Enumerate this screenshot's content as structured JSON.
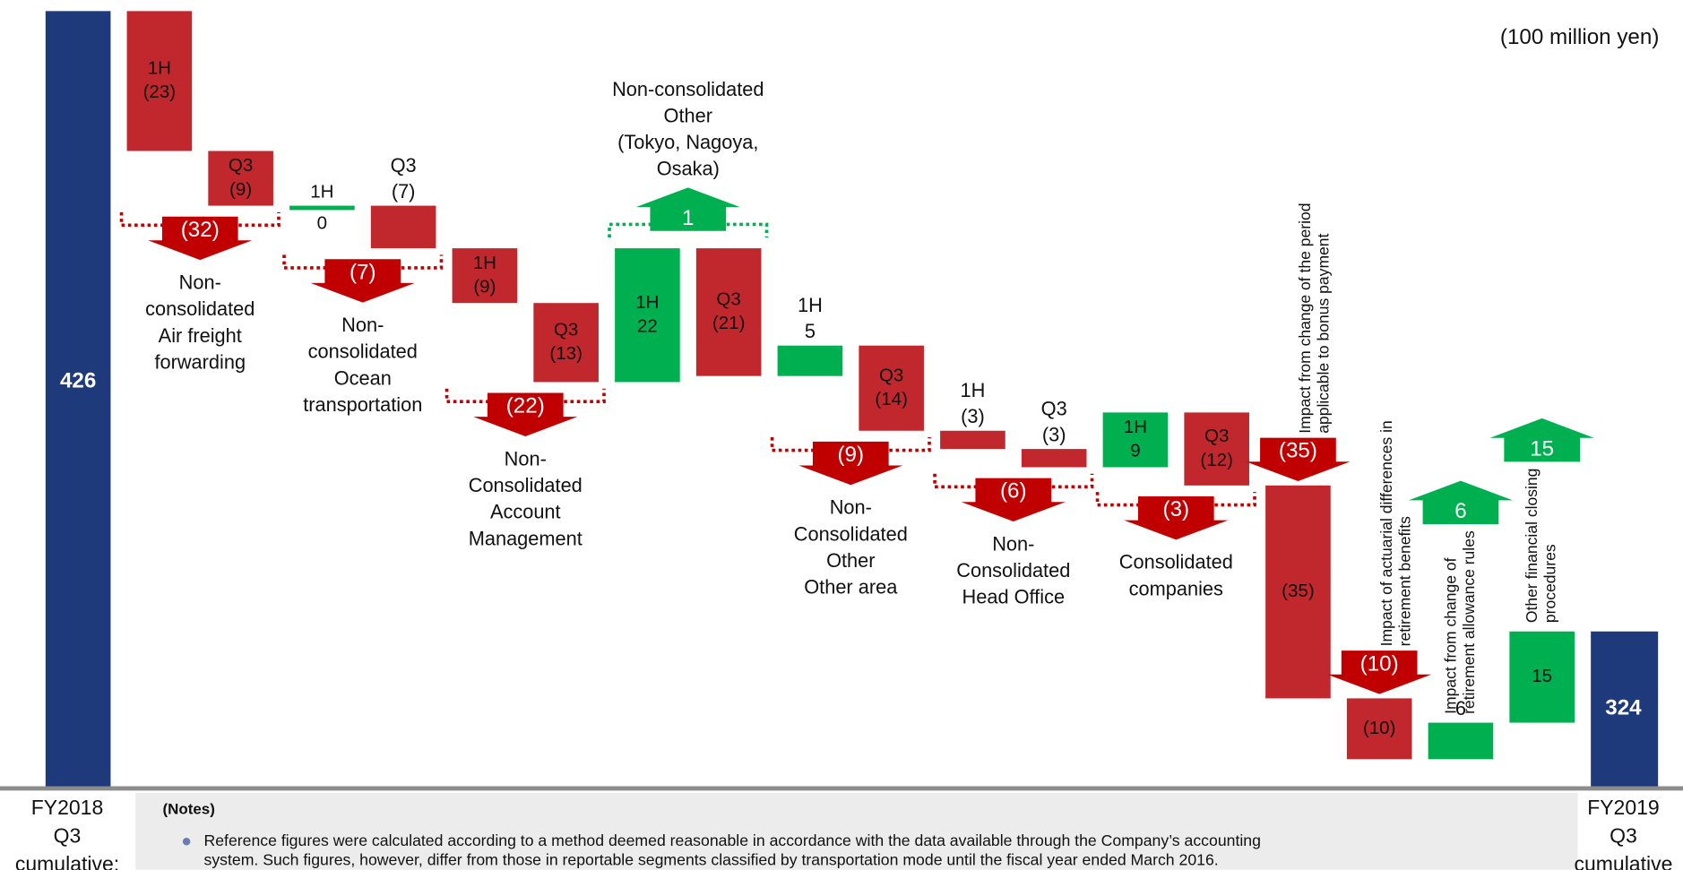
{
  "chart_data": {
    "type": "waterfall",
    "unit": "(100 million yen)",
    "colors": {
      "total": "#1f3a7a",
      "up": "#00b050",
      "down": "#c0282d",
      "arrow_down": "#c00000",
      "arrow_up": "#00b050"
    },
    "start": {
      "label": [
        "FY2018",
        "Q3",
        "cumulative:"
      ],
      "value": 426
    },
    "end": {
      "label": [
        "FY2019",
        "Q3",
        "cumulative"
      ],
      "value": 324
    },
    "groups": [
      {
        "name": [
          "Non-",
          "consolidated",
          "Air freight",
          "forwarding"
        ],
        "total": -32,
        "total_label": "(32)",
        "steps": [
          {
            "period": "1H",
            "value": -23,
            "value_label": "(23)"
          },
          {
            "period": "Q3",
            "value": -9,
            "value_label": "(9)"
          }
        ]
      },
      {
        "name": [
          "Non-",
          "consolidated",
          "Ocean",
          "transportation"
        ],
        "total": -7,
        "total_label": "(7)",
        "steps": [
          {
            "period": "1H",
            "value": 0
          },
          {
            "period": "Q3",
            "value": -7,
            "value_label": "(7)"
          }
        ]
      },
      {
        "name": [
          "Non-",
          "Consolidated",
          "Account",
          "Management"
        ],
        "total": -22,
        "total_label": "(22)",
        "steps": [
          {
            "period": "1H",
            "value": -9,
            "value_label": "(9)"
          },
          {
            "period": "Q3",
            "value": -13,
            "value_label": "(13)"
          }
        ]
      },
      {
        "name": [
          "Non-consolidated",
          "Other",
          "(Tokyo, Nagoya,",
          "Osaka)"
        ],
        "total": 1,
        "steps": [
          {
            "period": "1H",
            "value": 22
          },
          {
            "period": "Q3",
            "value": -21,
            "value_label": "(21)"
          }
        ]
      },
      {
        "name": [
          "Non-",
          "Consolidated",
          "Other",
          "Other area"
        ],
        "total": -9,
        "total_label": "(9)",
        "steps": [
          {
            "period": "1H",
            "value": 5
          },
          {
            "period": "Q3",
            "value": -14,
            "value_label": "(14)"
          }
        ]
      },
      {
        "name": [
          "Non-",
          "Consolidated",
          "Head Office"
        ],
        "total": -6,
        "total_label": "(6)",
        "steps": [
          {
            "period": "1H",
            "value": -3,
            "value_label": "(3)"
          },
          {
            "period": "Q3",
            "value": -3,
            "value_label": "(3)"
          }
        ]
      },
      {
        "name": [
          "Consolidated",
          "companies"
        ],
        "total": -3,
        "total_label": "(3)",
        "steps": [
          {
            "period": "1H",
            "value": 9
          },
          {
            "period": "Q3",
            "value": -12,
            "value_label": "(12)"
          }
        ]
      }
    ],
    "singles": [
      {
        "name": [
          "Impact from change of the period",
          "applicable to bonus payment"
        ],
        "value": -35,
        "value_label": "(35)"
      },
      {
        "name": [
          "Impact of actuarial differences in",
          "retirement benefits"
        ],
        "value": -10,
        "value_label": "(10)"
      },
      {
        "name": [
          "Impact from change of",
          "retirement allowance rules"
        ],
        "value": 6
      },
      {
        "name": [
          "Other financial closing",
          "procedures"
        ],
        "value": 15
      }
    ]
  },
  "notes": {
    "title": "(Notes)",
    "lines": [
      "Reference figures were calculated according to a method deemed reasonable in accordance with the data available through the Company’s accounting",
      "system. Such figures, however, differ from those in reportable segments classified by transportation mode until the fiscal year ended March 2016."
    ]
  }
}
